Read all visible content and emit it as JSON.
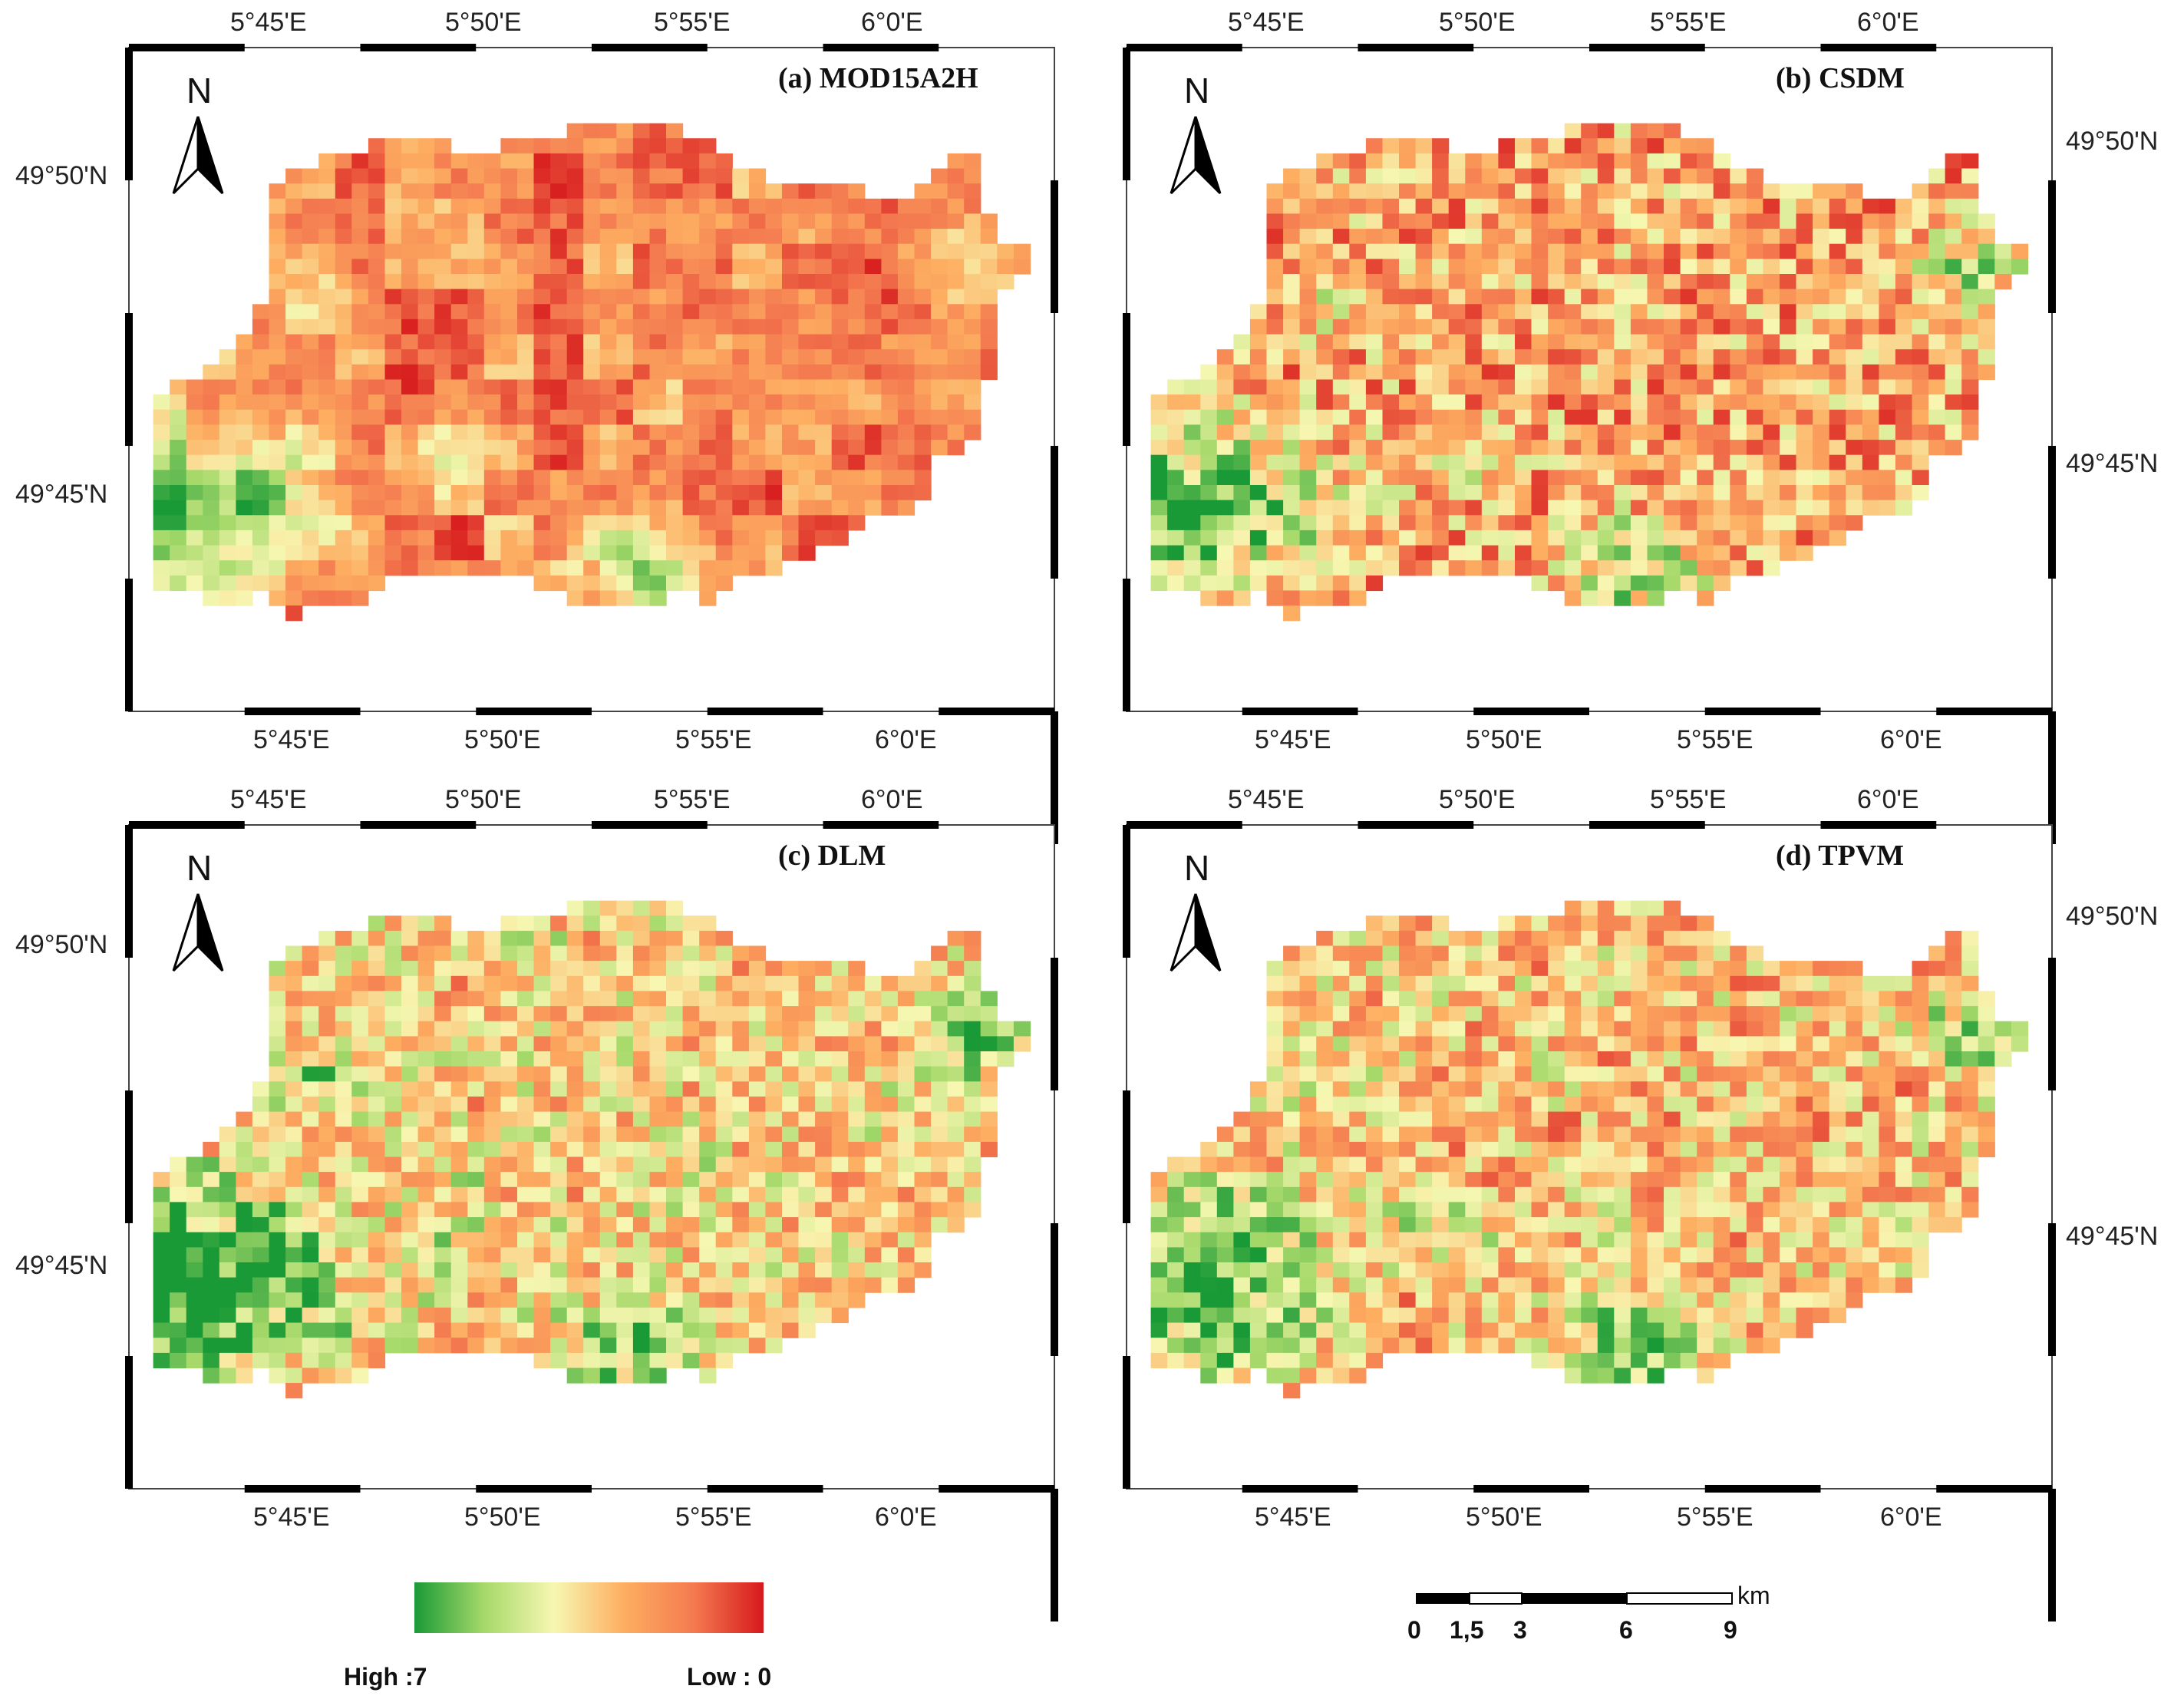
{
  "figure": "Four gridded maps of the same study area with a colour scale and a scale bar",
  "panels": [
    {
      "id": "a",
      "label": "(a)",
      "name": "MOD15A2H",
      "mode": "coarse"
    },
    {
      "id": "b",
      "label": "(b)",
      "name": "CSDM",
      "mode": "fine"
    },
    {
      "id": "c",
      "label": "(c)",
      "name": "DLM",
      "mode": "balanced"
    },
    {
      "id": "d",
      "label": "(d)",
      "name": "TPVM",
      "mode": "balanced2"
    }
  ],
  "lon_labels": [
    "5°45'E",
    "5°50'E",
    "5°55'E",
    "6°0'E"
  ],
  "lat_labels": [
    "49°50'N",
    "49°45'N"
  ],
  "north_arrow": {
    "letter": "N",
    "icon": "north-arrow-icon"
  },
  "legend": {
    "high_label": "High :7",
    "low_label": "Low : 0",
    "colors": [
      "#1a9a36",
      "#a6d96a",
      "#f7f7b2",
      "#fdae61",
      "#f47a50",
      "#d7191c"
    ]
  },
  "scale_bar": {
    "unit": "km",
    "ticks": [
      "0",
      "1,5",
      "3",
      "6",
      "9"
    ]
  }
}
